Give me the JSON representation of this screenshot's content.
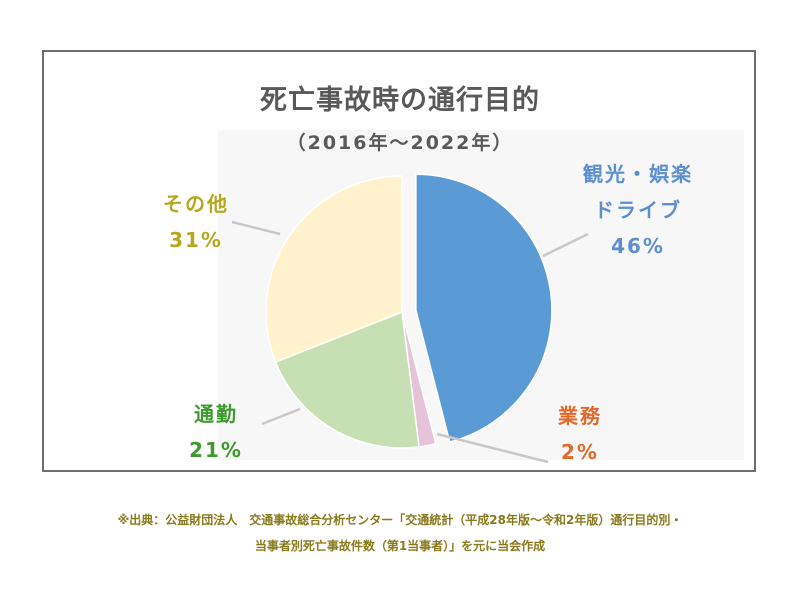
{
  "chart_data": {
    "type": "pie",
    "title": "死亡事故時の通行目的",
    "subtitle": "（2016年〜2022年）",
    "slices": [
      {
        "name": "観光・娯楽\nドライブ",
        "name_lines": [
          "観光・娯楽",
          "ドライブ"
        ],
        "value": 46,
        "label": "46%",
        "color": "#5b9bd5",
        "label_color": "#5b8fd0",
        "explode": true
      },
      {
        "name": "業務",
        "name_lines": [
          "業務"
        ],
        "value": 2,
        "label": "2%",
        "color": "#e6c3d9",
        "label_color": "#e06a2b",
        "explode": false
      },
      {
        "name": "通勤",
        "name_lines": [
          "通勤"
        ],
        "value": 21,
        "label": "21%",
        "color": "#c6e0b4",
        "label_color": "#3d9a2e",
        "explode": false
      },
      {
        "name": "その他",
        "name_lines": [
          "その他"
        ],
        "value": 31,
        "label": "31%",
        "color": "#fff2cc",
        "label_color": "#b5a81c",
        "explode": false
      }
    ],
    "legend": "none"
  },
  "source": {
    "line1": "※出典：公益財団法人　交通事故総合分析センター「交通統計（平成28年版〜令和2年版）通行目的別・",
    "line2": "当事者別死亡事故件数（第1当事者）」を元に当会作成"
  }
}
